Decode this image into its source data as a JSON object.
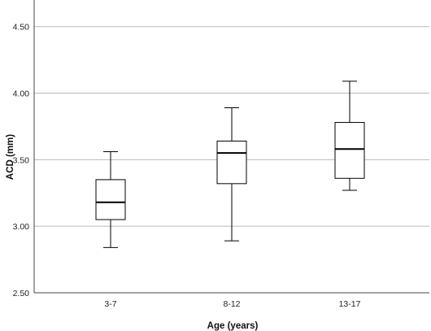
{
  "chart_data": {
    "type": "boxplot",
    "title": "",
    "xlabel": "Age (years)",
    "ylabel": "ACD (mm)",
    "ylim": [
      2.5,
      4.7
    ],
    "yticks": [
      2.5,
      3.0,
      3.5,
      4.0,
      4.5
    ],
    "ytick_labels": [
      "2.50",
      "3.00",
      "3.50",
      "4.00",
      "4.50"
    ],
    "grid": "horizontal",
    "categories": [
      "3-7",
      "8-12",
      "13-17"
    ],
    "boxes": [
      {
        "category": "3-7",
        "min": 2.84,
        "q1": 3.05,
        "median": 3.18,
        "q3": 3.35,
        "max": 3.56
      },
      {
        "category": "8-12",
        "min": 2.89,
        "q1": 3.32,
        "median": 3.55,
        "q3": 3.64,
        "max": 3.89
      },
      {
        "category": "13-17",
        "min": 3.27,
        "q1": 3.36,
        "median": 3.58,
        "q3": 3.78,
        "max": 4.09
      }
    ],
    "colors": {
      "box_fill": "#ffffff",
      "stroke": "#000000",
      "grid": "#b9b9b9",
      "axis": "#444444"
    }
  }
}
